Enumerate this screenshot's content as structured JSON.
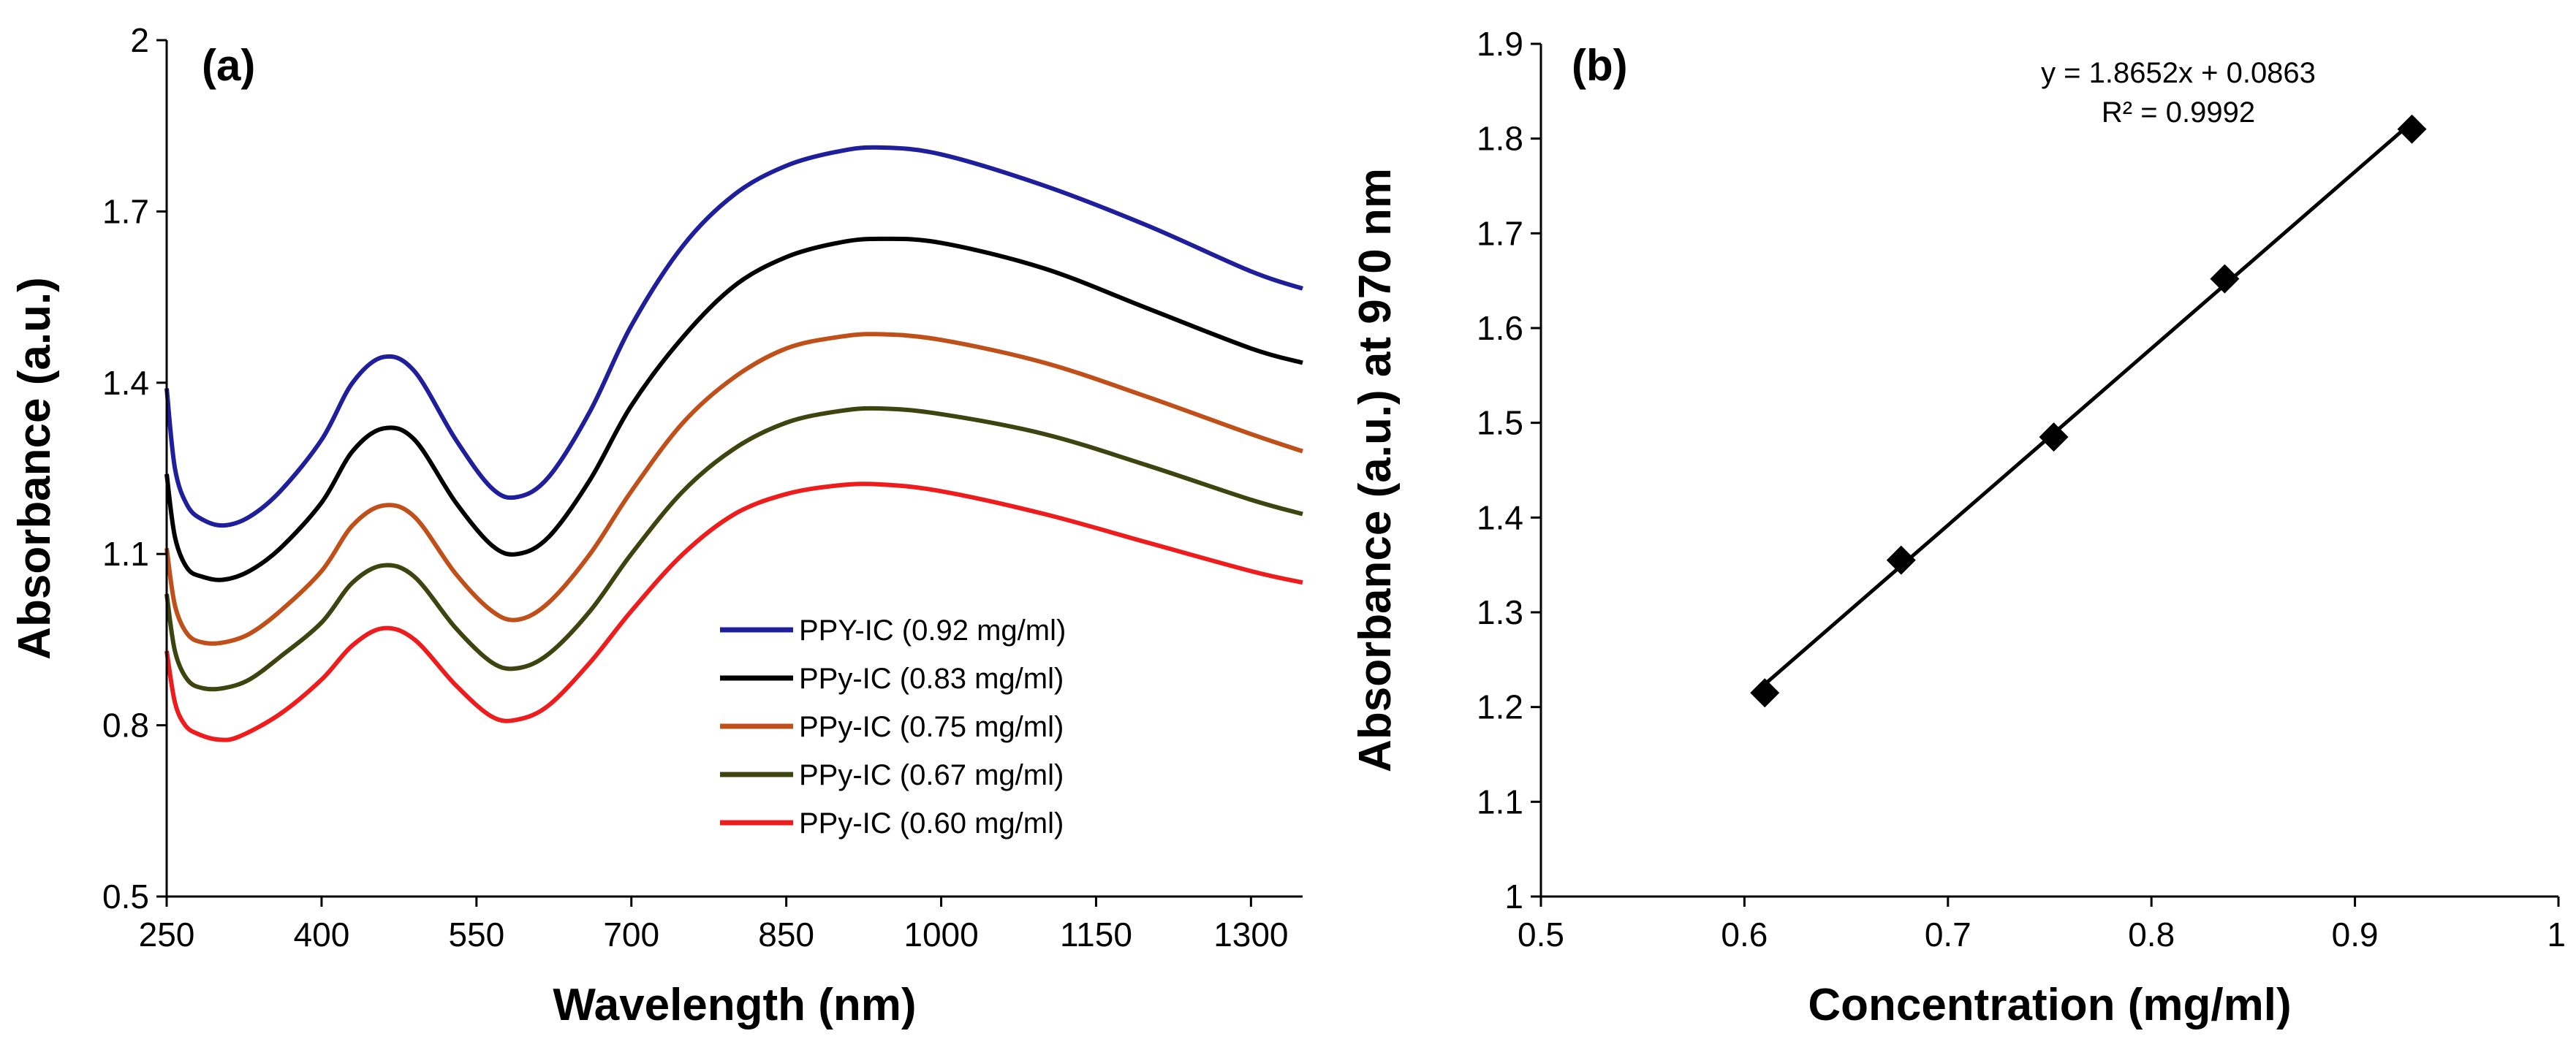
{
  "chart_data": [
    {
      "type": "line",
      "panel_label": "(a)",
      "title": "",
      "xlabel": "Wavelength (nm)",
      "ylabel": "Absorbance (a.u.)",
      "xlim": [
        250,
        1350
      ],
      "ylim": [
        0.5,
        2.0
      ],
      "x_ticks": [
        "250",
        "400",
        "550",
        "700",
        "850",
        "1000",
        "1150",
        "1300"
      ],
      "y_ticks": [
        "0.5",
        "0.8",
        "1.1",
        "1.4",
        "1.7",
        "2"
      ],
      "grid": false,
      "legend_position": "bottom-right",
      "series": [
        {
          "name": "PPY-IC (0.92 mg/ml)",
          "color": "#1f1f9c",
          "points": [
            [
              250,
              1.39
            ],
            [
              258,
              1.25
            ],
            [
              270,
              1.185
            ],
            [
              285,
              1.16
            ],
            [
              305,
              1.15
            ],
            [
              330,
              1.165
            ],
            [
              360,
              1.21
            ],
            [
              400,
              1.3
            ],
            [
              430,
              1.4
            ],
            [
              460,
              1.445
            ],
            [
              490,
              1.42
            ],
            [
              530,
              1.3
            ],
            [
              565,
              1.215
            ],
            [
              590,
              1.2
            ],
            [
              620,
              1.235
            ],
            [
              660,
              1.35
            ],
            [
              700,
              1.5
            ],
            [
              750,
              1.64
            ],
            [
              800,
              1.73
            ],
            [
              850,
              1.78
            ],
            [
              900,
              1.805
            ],
            [
              940,
              1.812
            ],
            [
              1000,
              1.8
            ],
            [
              1100,
              1.745
            ],
            [
              1200,
              1.675
            ],
            [
              1300,
              1.595
            ],
            [
              1350,
              1.565
            ]
          ]
        },
        {
          "name": "PPy-IC (0.83 mg/ml)",
          "color": "#000000",
          "points": [
            [
              250,
              1.24
            ],
            [
              258,
              1.13
            ],
            [
              270,
              1.075
            ],
            [
              285,
              1.06
            ],
            [
              305,
              1.055
            ],
            [
              330,
              1.07
            ],
            [
              360,
              1.11
            ],
            [
              400,
              1.19
            ],
            [
              430,
              1.28
            ],
            [
              460,
              1.32
            ],
            [
              490,
              1.3
            ],
            [
              530,
              1.19
            ],
            [
              565,
              1.115
            ],
            [
              590,
              1.1
            ],
            [
              620,
              1.13
            ],
            [
              660,
              1.23
            ],
            [
              700,
              1.36
            ],
            [
              750,
              1.48
            ],
            [
              800,
              1.57
            ],
            [
              850,
              1.62
            ],
            [
              900,
              1.645
            ],
            [
              940,
              1.652
            ],
            [
              1000,
              1.645
            ],
            [
              1100,
              1.6
            ],
            [
              1200,
              1.53
            ],
            [
              1300,
              1.46
            ],
            [
              1350,
              1.435
            ]
          ]
        },
        {
          "name": "PPy-IC (0.75 mg/ml)",
          "color": "#c0501a",
          "points": [
            [
              250,
              1.11
            ],
            [
              258,
              1.01
            ],
            [
              270,
              0.96
            ],
            [
              285,
              0.945
            ],
            [
              305,
              0.945
            ],
            [
              330,
              0.96
            ],
            [
              360,
              1.0
            ],
            [
              400,
              1.07
            ],
            [
              430,
              1.15
            ],
            [
              460,
              1.185
            ],
            [
              490,
              1.165
            ],
            [
              530,
              1.065
            ],
            [
              565,
              1.0
            ],
            [
              590,
              0.985
            ],
            [
              620,
              1.015
            ],
            [
              660,
              1.1
            ],
            [
              700,
              1.21
            ],
            [
              750,
              1.33
            ],
            [
              800,
              1.41
            ],
            [
              850,
              1.46
            ],
            [
              900,
              1.48
            ],
            [
              940,
              1.485
            ],
            [
              1000,
              1.475
            ],
            [
              1100,
              1.435
            ],
            [
              1200,
              1.375
            ],
            [
              1300,
              1.31
            ],
            [
              1350,
              1.28
            ]
          ]
        },
        {
          "name": "PPy-IC (0.67 mg/ml)",
          "color": "#3d4410",
          "points": [
            [
              250,
              1.03
            ],
            [
              258,
              0.93
            ],
            [
              270,
              0.88
            ],
            [
              285,
              0.865
            ],
            [
              305,
              0.865
            ],
            [
              330,
              0.88
            ],
            [
              360,
              0.92
            ],
            [
              400,
              0.98
            ],
            [
              430,
              1.05
            ],
            [
              460,
              1.08
            ],
            [
              490,
              1.06
            ],
            [
              530,
              0.97
            ],
            [
              565,
              0.91
            ],
            [
              590,
              0.9
            ],
            [
              620,
              0.925
            ],
            [
              660,
              1.0
            ],
            [
              700,
              1.1
            ],
            [
              750,
              1.21
            ],
            [
              800,
              1.285
            ],
            [
              850,
              1.33
            ],
            [
              900,
              1.35
            ],
            [
              940,
              1.355
            ],
            [
              1000,
              1.345
            ],
            [
              1100,
              1.31
            ],
            [
              1200,
              1.255
            ],
            [
              1300,
              1.195
            ],
            [
              1350,
              1.17
            ]
          ]
        },
        {
          "name": "PPy-IC (0.60 mg/ml)",
          "color": "#ee1c1c",
          "points": [
            [
              250,
              0.93
            ],
            [
              258,
              0.84
            ],
            [
              268,
              0.8
            ],
            [
              280,
              0.785
            ],
            [
              300,
              0.775
            ],
            [
              320,
              0.78
            ],
            [
              360,
              0.82
            ],
            [
              400,
              0.88
            ],
            [
              430,
              0.94
            ],
            [
              460,
              0.97
            ],
            [
              490,
              0.95
            ],
            [
              530,
              0.87
            ],
            [
              565,
              0.815
            ],
            [
              590,
              0.81
            ],
            [
              620,
              0.835
            ],
            [
              660,
              0.91
            ],
            [
              700,
              1.0
            ],
            [
              750,
              1.1
            ],
            [
              800,
              1.17
            ],
            [
              850,
              1.205
            ],
            [
              900,
              1.22
            ],
            [
              940,
              1.222
            ],
            [
              1000,
              1.21
            ],
            [
              1100,
              1.17
            ],
            [
              1200,
              1.12
            ],
            [
              1300,
              1.07
            ],
            [
              1350,
              1.05
            ]
          ]
        }
      ]
    },
    {
      "type": "scatter",
      "panel_label": "(b)",
      "title": "",
      "xlabel": "Concentration (mg/ml)",
      "ylabel": "Absorbance (a.u.) at 970 nm",
      "xlim": [
        0.5,
        1.0
      ],
      "ylim": [
        1.0,
        1.9
      ],
      "x_ticks": [
        "0.5",
        "0.6",
        "0.7",
        "0.8",
        "0.9",
        "1"
      ],
      "y_ticks": [
        "1",
        "1.1",
        "1.2",
        "1.3",
        "1.4",
        "1.5",
        "1.6",
        "1.7",
        "1.8",
        "1.9"
      ],
      "grid": false,
      "marker": "diamond",
      "marker_color": "#000000",
      "x": [
        0.61,
        0.677,
        0.752,
        0.836,
        0.928
      ],
      "y": [
        1.215,
        1.355,
        1.485,
        1.652,
        1.81
      ],
      "fit": {
        "type": "linear",
        "slope": 1.8652,
        "intercept": 0.0863,
        "x_range": [
          0.61,
          0.928
        ]
      },
      "annotation_equation": "y = 1.8652x + 0.0863",
      "annotation_r2": "R² = 0.9992"
    }
  ]
}
